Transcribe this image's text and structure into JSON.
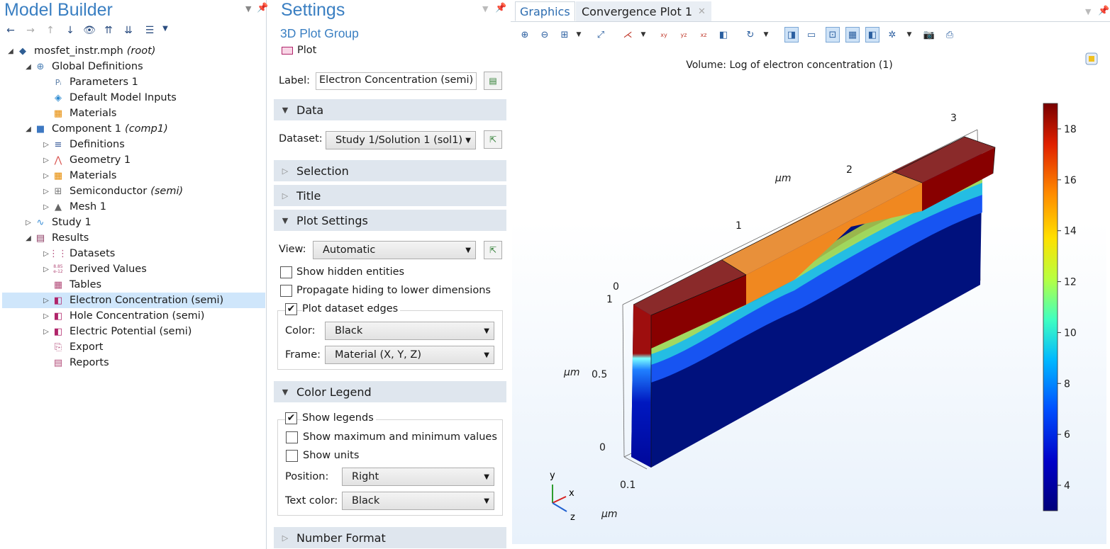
{
  "model_builder": {
    "title": "Model Builder",
    "tree": [
      {
        "label": "mosfet_instr.mph",
        "tag": "(root)"
      },
      {
        "label": "Global Definitions"
      },
      {
        "label": "Parameters 1"
      },
      {
        "label": "Default Model Inputs"
      },
      {
        "label": "Materials"
      },
      {
        "label": "Component 1",
        "tag": "(comp1)"
      },
      {
        "label": "Definitions"
      },
      {
        "label": "Geometry 1"
      },
      {
        "label": "Materials"
      },
      {
        "label": "Semiconductor",
        "tag": "(semi)"
      },
      {
        "label": "Mesh 1"
      },
      {
        "label": "Study 1"
      },
      {
        "label": "Results"
      },
      {
        "label": "Datasets"
      },
      {
        "label": "Derived Values"
      },
      {
        "label": "Tables"
      },
      {
        "label": "Electron Concentration (semi)"
      },
      {
        "label": "Hole Concentration (semi)"
      },
      {
        "label": "Electric Potential (semi)"
      },
      {
        "label": "Export"
      },
      {
        "label": "Reports"
      }
    ],
    "icons": {
      "pi": "Pᵢ",
      "de": "8.85\ne-12"
    }
  },
  "settings": {
    "title": "Settings",
    "subtitle": "3D Plot Group",
    "node": "Plot",
    "label_caption": "Label:",
    "label_value": "Electron Concentration (semi)",
    "sections": {
      "data": "Data",
      "selection": "Selection",
      "title": "Title",
      "plot_settings": "Plot Settings",
      "color_legend": "Color Legend",
      "number_format": "Number Format"
    },
    "dataset_caption": "Dataset:",
    "dataset_value": "Study 1/Solution 1 (sol1)",
    "view_caption": "View:",
    "view_value": "Automatic",
    "show_hidden": "Show hidden entities",
    "propagate_hiding": "Propagate hiding to lower dimensions",
    "plot_dataset_edges": "Plot dataset edges",
    "color_caption": "Color:",
    "color_value": "Black",
    "frame_caption": "Frame:",
    "frame_value": "Material  (X, Y, Z)",
    "show_legends": "Show legends",
    "show_maxmin": "Show maximum and minimum values",
    "show_units": "Show units",
    "position_caption": "Position:",
    "position_value": "Right",
    "textcolor_caption": "Text color:",
    "textcolor_value": "Black",
    "checked": {
      "show_hidden": false,
      "propagate_hiding": false,
      "plot_dataset_edges": true,
      "show_legends": true,
      "show_maxmin": false,
      "show_units": false
    }
  },
  "graphics": {
    "tabs": [
      "Graphics",
      "Convergence Plot 1"
    ],
    "close_glyph": "✕",
    "plot_title": "Volume: Log of electron concentration (1)",
    "legend_ticks": [
      "18",
      "16",
      "14",
      "12",
      "10",
      "8",
      "6",
      "4"
    ],
    "axis_labels": {
      "x_ticks": [
        "0",
        "1",
        "2",
        "3"
      ],
      "y_ticks": [
        "1",
        "0.5",
        "0"
      ],
      "z_ticks": [
        "0.1"
      ],
      "unit": "μm"
    },
    "triad": {
      "y": "y",
      "x": "x",
      "z": "z"
    },
    "toolbar_labels": {
      "xy": "xy",
      "yz": "yz",
      "xz": "xz"
    }
  },
  "chart_data": {
    "type": "heatmap",
    "title": "Volume: Log of electron concentration (1)",
    "colorbar": {
      "min": 3,
      "max": 19,
      "ticks": [
        4,
        6,
        8,
        10,
        12,
        14,
        16,
        18
      ]
    },
    "x_ticks": [
      0,
      1,
      2,
      3
    ],
    "y_ticks": [
      0,
      0.5,
      1
    ],
    "z_ticks": [
      0.1
    ],
    "unit": "μm"
  }
}
